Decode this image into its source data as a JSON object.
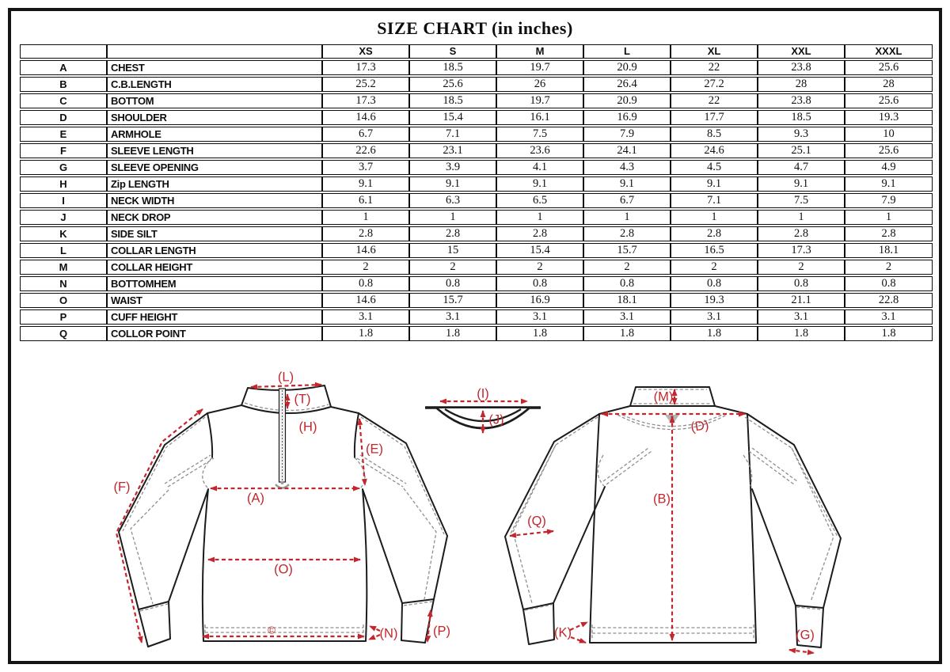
{
  "title": "SIZE CHART (in inches)",
  "colors": {
    "accent_red": "#c1272d",
    "line_black": "#1c1c1c",
    "seam_gray": "#8f8f8f"
  },
  "table": {
    "size_headers": [
      "XS",
      "S",
      "M",
      "L",
      "XL",
      "XXL",
      "XXXL"
    ],
    "rows": [
      {
        "letter": "A",
        "name": "CHEST",
        "values": [
          "17.3",
          "18.5",
          "19.7",
          "20.9",
          "22",
          "23.8",
          "25.6"
        ]
      },
      {
        "letter": "B",
        "name": "C.B.LENGTH",
        "values": [
          "25.2",
          "25.6",
          "26",
          "26.4",
          "27.2",
          "28",
          "28"
        ]
      },
      {
        "letter": "C",
        "name": "BOTTOM",
        "values": [
          "17.3",
          "18.5",
          "19.7",
          "20.9",
          "22",
          "23.8",
          "25.6"
        ]
      },
      {
        "letter": "D",
        "name": "SHOULDER",
        "values": [
          "14.6",
          "15.4",
          "16.1",
          "16.9",
          "17.7",
          "18.5",
          "19.3"
        ]
      },
      {
        "letter": "E",
        "name": "ARMHOLE",
        "values": [
          "6.7",
          "7.1",
          "7.5",
          "7.9",
          "8.5",
          "9.3",
          "10"
        ]
      },
      {
        "letter": "F",
        "name": "SLEEVE LENGTH",
        "values": [
          "22.6",
          "23.1",
          "23.6",
          "24.1",
          "24.6",
          "25.1",
          "25.6"
        ]
      },
      {
        "letter": "G",
        "name": "SLEEVE OPENING",
        "values": [
          "3.7",
          "3.9",
          "4.1",
          "4.3",
          "4.5",
          "4.7",
          "4.9"
        ]
      },
      {
        "letter": "H",
        "name": "Zip LENGTH",
        "values": [
          "9.1",
          "9.1",
          "9.1",
          "9.1",
          "9.1",
          "9.1",
          "9.1"
        ]
      },
      {
        "letter": "I",
        "name": "NECK WIDTH",
        "values": [
          "6.1",
          "6.3",
          "6.5",
          "6.7",
          "7.1",
          "7.5",
          "7.9"
        ]
      },
      {
        "letter": "J",
        "name": "NECK DROP",
        "values": [
          "1",
          "1",
          "1",
          "1",
          "1",
          "1",
          "1"
        ]
      },
      {
        "letter": "K",
        "name": "SIDE SILT",
        "values": [
          "2.8",
          "2.8",
          "2.8",
          "2.8",
          "2.8",
          "2.8",
          "2.8"
        ]
      },
      {
        "letter": "L",
        "name": "COLLAR LENGTH",
        "values": [
          "14.6",
          "15",
          "15.4",
          "15.7",
          "16.5",
          "17.3",
          "18.1"
        ]
      },
      {
        "letter": "M",
        "name": "COLLAR HEIGHT",
        "values": [
          "2",
          "2",
          "2",
          "2",
          "2",
          "2",
          "2"
        ]
      },
      {
        "letter": "N",
        "name": "BOTTOMHEM",
        "values": [
          "0.8",
          "0.8",
          "0.8",
          "0.8",
          "0.8",
          "0.8",
          "0.8"
        ]
      },
      {
        "letter": "O",
        "name": "WAIST",
        "values": [
          "14.6",
          "15.7",
          "16.9",
          "18.1",
          "19.3",
          "21.1",
          "22.8"
        ]
      },
      {
        "letter": "P",
        "name": "CUFF HEIGHT",
        "values": [
          "3.1",
          "3.1",
          "3.1",
          "3.1",
          "3.1",
          "3.1",
          "3.1"
        ]
      },
      {
        "letter": "Q",
        "name": "COLLOR POINT",
        "values": [
          "1.8",
          "1.8",
          "1.8",
          "1.8",
          "1.8",
          "1.8",
          "1.8"
        ]
      }
    ]
  },
  "diagram": {
    "front": {
      "L": "(L)",
      "T": "(T)",
      "H": "(H)",
      "E": "(E)",
      "A": "(A)",
      "F": "(F)",
      "O": "(O)",
      "C": "©",
      "N": "(N)",
      "P": "(P)"
    },
    "collar_detail": {
      "I": "(I)",
      "J": "(J)"
    },
    "back": {
      "M": "(M)",
      "D": "(D)",
      "B": "(B)",
      "Q": "(Q)",
      "K": "(K)",
      "G": "(G)"
    }
  }
}
